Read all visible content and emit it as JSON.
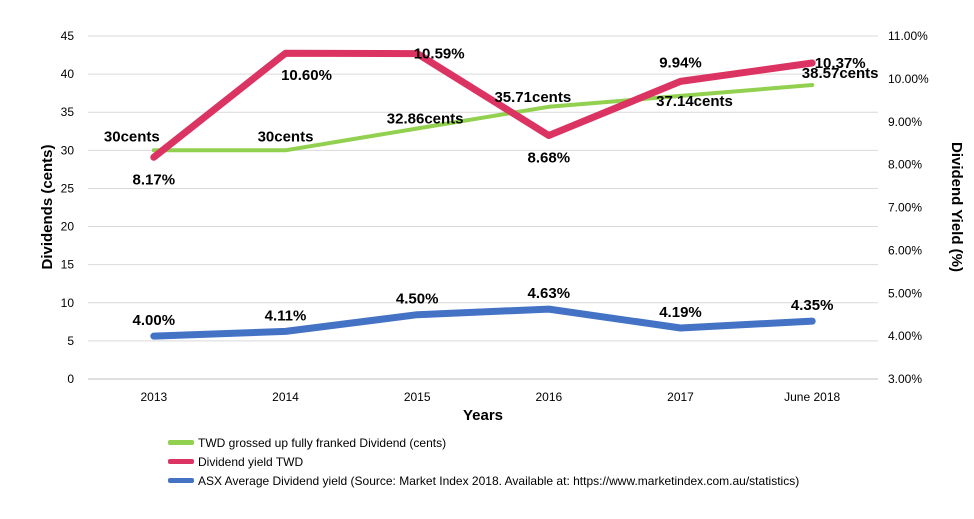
{
  "chart_data": {
    "type": "line",
    "categories": [
      "2013",
      "2014",
      "2015",
      "2016",
      "2017",
      "June 2018"
    ],
    "xlabel": "Years",
    "ylabel_left": "Dividends (cents)",
    "ylabel_right": "Dividend Yield (%)",
    "ylim_left": [
      0,
      45
    ],
    "ylim_right": [
      3.0,
      11.0
    ],
    "left_ticks": [
      "0",
      "5",
      "10",
      "15",
      "20",
      "25",
      "30",
      "35",
      "40",
      "45"
    ],
    "right_ticks": [
      "3.00%",
      "4.00%",
      "5.00%",
      "6.00%",
      "7.00%",
      "8.00%",
      "9.00%",
      "10.00%",
      "11.00%"
    ],
    "grid": true,
    "legend_position": "bottom-left",
    "series": [
      {
        "name": "TWD grossed up fully franked Dividend (cents)",
        "axis": "left",
        "color": "#92d050",
        "values": [
          30,
          30,
          32.86,
          35.71,
          37.14,
          38.57
        ],
        "labels": [
          "30cents",
          "30cents",
          "32.86cents",
          "35.71cents",
          "37.14cents",
          "38.57cents"
        ]
      },
      {
        "name": "Dividend yield TWD",
        "axis": "right",
        "color": "#dc3462",
        "values": [
          8.17,
          10.6,
          10.59,
          8.68,
          9.94,
          10.37
        ],
        "labels": [
          "8.17%",
          "10.60%",
          "10.59%",
          "8.68%",
          "9.94%",
          "10.37%"
        ]
      },
      {
        "name": "ASX Average Dividend yield (Source: Market Index 2018. Available at: https://www.marketindex.com.au/statistics)",
        "axis": "right",
        "color": "#4472c4",
        "values": [
          4.0,
          4.11,
          4.5,
          4.63,
          4.19,
          4.35
        ],
        "labels": [
          "4.00%",
          "4.11%",
          "4.50%",
          "4.63%",
          "4.19%",
          "4.35%"
        ]
      }
    ]
  }
}
